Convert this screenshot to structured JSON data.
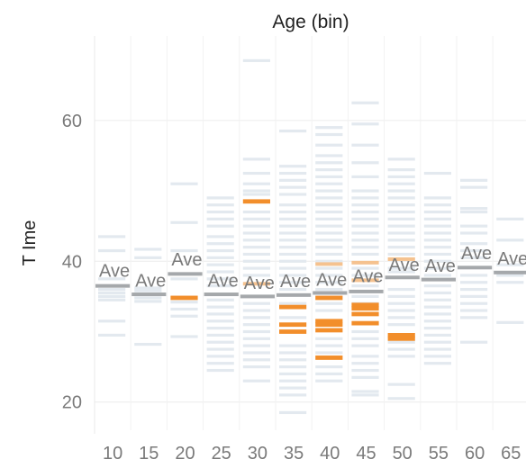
{
  "chart_data": {
    "type": "strip",
    "title": "Age (bin)",
    "ylabel": "T Ime",
    "ylim": [
      16,
      72
    ],
    "yticks": [
      20,
      40,
      60
    ],
    "grid": true,
    "average_label": "Ave",
    "colors": {
      "strip": "#e3e9ef",
      "line": "#ffffff",
      "highlight": "#f28e2b",
      "highlight_light": "#f5c28f",
      "average": "#a5a8ab"
    },
    "categories": [
      "10",
      "15",
      "20",
      "25",
      "30",
      "35",
      "40",
      "45",
      "50",
      "55",
      "60",
      "65"
    ],
    "columns": [
      {
        "category": "10",
        "average": 36.5,
        "avg_label_y": 38.7,
        "values": [
          43.5,
          41.5,
          37.5,
          36.0,
          35.5,
          35.0,
          34.5,
          31.5,
          29.5
        ],
        "highlight": [],
        "highlight_light": []
      },
      {
        "category": "15",
        "average": 35.3,
        "avg_label_y": 37.3,
        "values": [
          41.7,
          40.5,
          36.2,
          35.8,
          34.8,
          34.3,
          28.2
        ],
        "highlight": [],
        "highlight_light": []
      },
      {
        "category": "20",
        "average": 38.2,
        "avg_label_y": 40.3,
        "values": [
          51.0,
          45.5,
          41.5,
          37.5,
          34.2,
          33.2,
          32.2,
          29.3
        ],
        "highlight": [
          34.8
        ],
        "highlight_light": []
      },
      {
        "category": "25",
        "average": 35.3,
        "avg_label_y": 37.3,
        "values": [
          49.0,
          48.0,
          47.0,
          46.0,
          45.0,
          43.5,
          42.5,
          41.5,
          40.5,
          39.5,
          38.5,
          37.5,
          36.5,
          34.5,
          33.5,
          32.5,
          31.5,
          30.5,
          29.5,
          28.5,
          27.5,
          26.5,
          25.5,
          24.5
        ],
        "highlight": [],
        "highlight_light": []
      },
      {
        "category": "30",
        "average": 35.0,
        "avg_label_y": 37.0,
        "values": [
          68.5,
          54.5,
          52.5,
          51.0,
          50.0,
          49.5,
          47.0,
          46.0,
          45.0,
          44.0,
          43.0,
          42.0,
          41.0,
          40.0,
          39.0,
          38.0,
          34.0,
          33.0,
          32.0,
          31.0,
          30.0,
          29.0,
          28.0,
          27.0,
          26.0,
          25.0,
          23.0
        ],
        "highlight": [
          48.5
        ],
        "highlight_light": [
          36.8
        ]
      },
      {
        "category": "35",
        "average": 35.2,
        "avg_label_y": 37.2,
        "values": [
          58.5,
          53.5,
          52.5,
          51.5,
          50.5,
          49.5,
          48.0,
          47.0,
          46.0,
          45.0,
          44.0,
          43.0,
          42.0,
          41.0,
          40.0,
          39.0,
          38.0,
          37.0,
          36.0,
          34.0,
          32.0,
          28.0,
          27.0,
          26.0,
          25.0,
          24.0,
          23.0,
          22.0,
          21.0,
          18.5
        ],
        "highlight": [
          33.5,
          31.0,
          30.0
        ],
        "highlight_light": []
      },
      {
        "category": "40",
        "average": 35.5,
        "avg_label_y": 37.4,
        "values": [
          59.0,
          58.0,
          56.5,
          55.0,
          54.0,
          53.0,
          52.0,
          51.0,
          50.0,
          49.0,
          48.0,
          47.0,
          46.0,
          45.0,
          44.0,
          43.0,
          42.0,
          41.0,
          40.0,
          39.0,
          38.0,
          37.0,
          36.0,
          34.0,
          33.0,
          29.0,
          28.0,
          27.0,
          25.0,
          24.0,
          23.0
        ],
        "highlight": [
          34.8,
          31.5,
          31.0,
          30.2,
          26.3
        ],
        "highlight_light": [
          39.6
        ]
      },
      {
        "category": "45",
        "average": 35.7,
        "avg_label_y": 37.9,
        "values": [
          62.5,
          59.5,
          56.5,
          54.0,
          52.0,
          50.0,
          49.0,
          48.0,
          47.0,
          46.0,
          45.0,
          44.0,
          43.0,
          42.0,
          41.0,
          39.0,
          38.0,
          36.5,
          35.0,
          34.0,
          30.0,
          29.0,
          28.0,
          26.5,
          25.5,
          24.5,
          23.5,
          21.5,
          21.0
        ],
        "highlight": [
          33.8,
          33.3,
          32.5,
          31.2
        ],
        "highlight_light": [
          39.8,
          37.3
        ]
      },
      {
        "category": "50",
        "average": 37.7,
        "avg_label_y": 39.5,
        "values": [
          54.5,
          53.0,
          52.0,
          51.0,
          50.0,
          49.0,
          48.0,
          47.0,
          46.0,
          45.0,
          44.0,
          43.0,
          42.0,
          41.0,
          39.0,
          38.5,
          36.0,
          35.0,
          34.0,
          33.0,
          32.0,
          31.0,
          28.5,
          27.5,
          26.5,
          22.5,
          20.5
        ],
        "highlight": [
          29.5,
          29.0
        ],
        "highlight_light": [
          40.3
        ]
      },
      {
        "category": "55",
        "average": 37.4,
        "avg_label_y": 39.4,
        "values": [
          52.5,
          49.0,
          48.0,
          47.0,
          46.0,
          45.0,
          44.0,
          43.0,
          42.0,
          41.0,
          40.0,
          39.0,
          38.0,
          36.5,
          35.5,
          34.5,
          33.5,
          32.5,
          31.5,
          30.5,
          29.5,
          28.5,
          27.5,
          26.5,
          25.5
        ],
        "highlight": [],
        "highlight_light": []
      },
      {
        "category": "60",
        "average": 39.1,
        "avg_label_y": 41.2,
        "values": [
          51.5,
          50.5,
          47.5,
          47.0,
          45.0,
          44.0,
          42.5,
          41.5,
          40.5,
          38.0,
          37.0,
          36.0,
          35.0,
          34.0,
          33.0,
          32.0,
          28.5
        ],
        "highlight": [],
        "highlight_light": []
      },
      {
        "category": "65",
        "average": 38.4,
        "avg_label_y": 40.4,
        "values": [
          46.0,
          43.0,
          39.5,
          38.0,
          37.0,
          31.3
        ],
        "highlight": [],
        "highlight_light": []
      }
    ]
  }
}
